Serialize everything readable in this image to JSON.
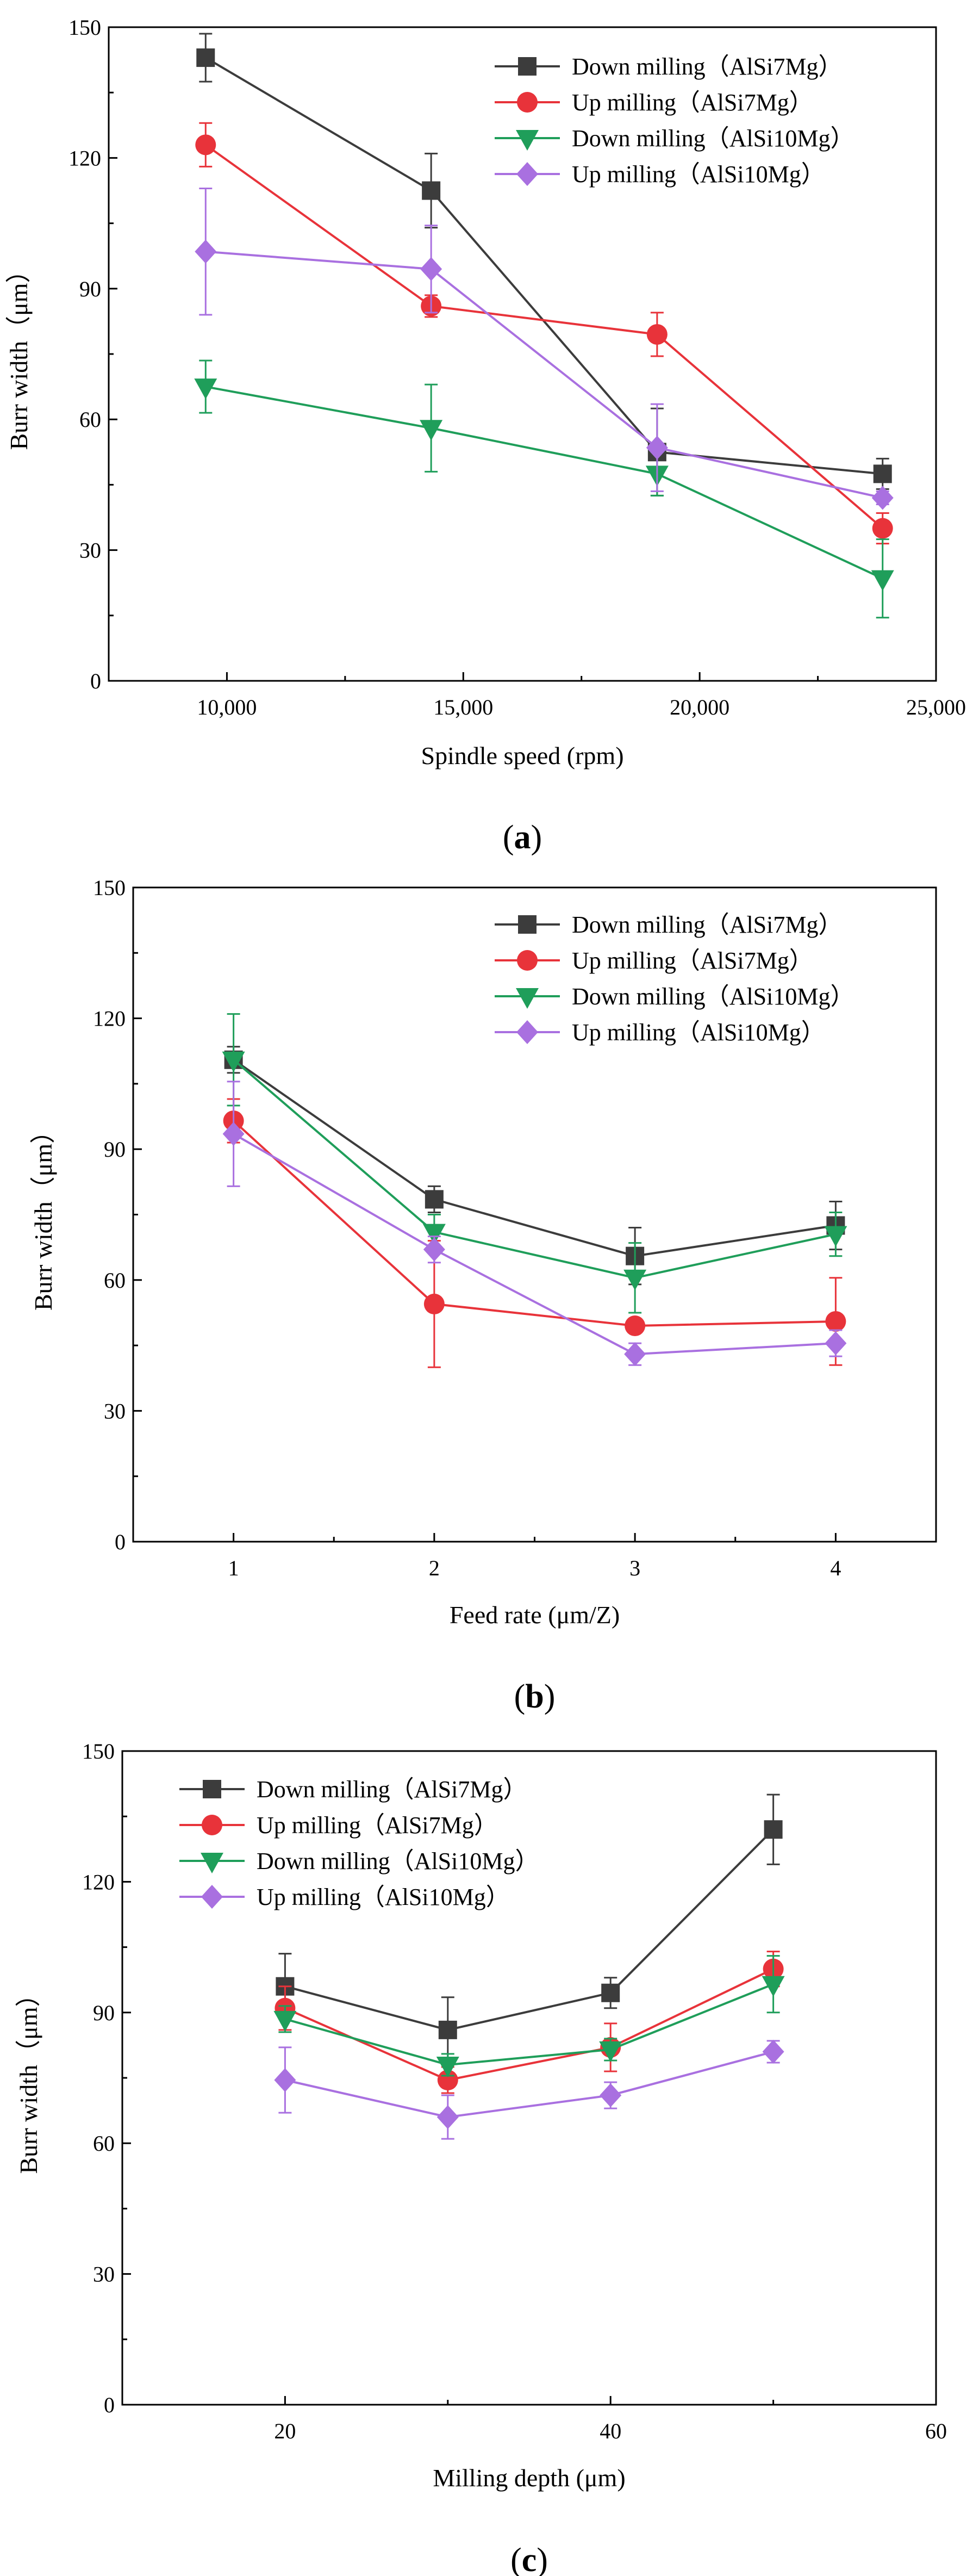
{
  "chart_data": [
    {
      "type": "line",
      "caption": "a",
      "title": "",
      "xlabel": "Spindle speed (rpm)",
      "ylabel": "Burr width（μm）",
      "xlim": [
        7500,
        25000
      ],
      "ylim": [
        0,
        150
      ],
      "xticks": [
        10000,
        15000,
        20000,
        25000
      ],
      "xtick_labels": [
        "10,000",
        "15,000",
        "20,000",
        "25,000"
      ],
      "yticks": [
        0,
        30,
        60,
        90,
        120,
        150
      ],
      "ytick_labels": [
        "0",
        "30",
        "60",
        "90",
        "120",
        "150"
      ],
      "legend_position": "top-right",
      "grid": false,
      "x": [
        9550,
        14320,
        19100,
        23870
      ],
      "series": [
        {
          "name": "Down milling（AlSi7Mg）",
          "color": "#3c3c3c",
          "marker": "square",
          "values": [
            143,
            112.5,
            52.5,
            47.5
          ],
          "errors": [
            5.5,
            8.5,
            10,
            3.5
          ]
        },
        {
          "name": "Up milling（AlSi7Mg）",
          "color": "#e8333a",
          "marker": "circle",
          "values": [
            123,
            86,
            79.5,
            35
          ],
          "errors": [
            5,
            2.5,
            5,
            3.5
          ]
        },
        {
          "name": "Down milling（AlSi10Mg）",
          "color": "#1f9e5a",
          "marker": "triangle-down",
          "values": [
            67.5,
            58,
            47.5,
            23.5
          ],
          "errors": [
            6,
            10,
            5,
            9
          ]
        },
        {
          "name": "Up milling（AlSi10Mg）",
          "color": "#a970e0",
          "marker": "diamond",
          "values": [
            98.5,
            94.5,
            53.5,
            42
          ],
          "errors": [
            14.5,
            10,
            10,
            1.5
          ]
        }
      ]
    },
    {
      "type": "line",
      "caption": "b",
      "title": "",
      "xlabel": "Feed rate (μm/Z)",
      "ylabel": "Burr width（μm）",
      "xlim": [
        0.5,
        4.5
      ],
      "ylim": [
        0,
        150
      ],
      "xticks": [
        1,
        2,
        3,
        4
      ],
      "xtick_labels": [
        "1",
        "2",
        "3",
        "4"
      ],
      "yticks": [
        0,
        30,
        60,
        90,
        120,
        150
      ],
      "ytick_labels": [
        "0",
        "30",
        "60",
        "90",
        "120",
        "150"
      ],
      "legend_position": "top-right",
      "grid": false,
      "x": [
        1,
        2,
        3,
        4
      ],
      "series": [
        {
          "name": "Down milling（AlSi7Mg）",
          "color": "#3c3c3c",
          "marker": "square",
          "values": [
            110.5,
            78.5,
            65.5,
            72.5
          ],
          "errors": [
            3,
            3,
            6.5,
            5.5
          ]
        },
        {
          "name": "Up milling（AlSi7Mg）",
          "color": "#e8333a",
          "marker": "circle",
          "values": [
            96.5,
            54.5,
            49.5,
            50.5
          ],
          "errors": [
            5,
            14.5,
            1.5,
            10
          ]
        },
        {
          "name": "Down milling（AlSi10Mg）",
          "color": "#1f9e5a",
          "marker": "triangle-down",
          "values": [
            110.5,
            71,
            60.5,
            70.5
          ],
          "errors": [
            10.5,
            4,
            8,
            5
          ]
        },
        {
          "name": "Up milling（AlSi10Mg）",
          "color": "#a970e0",
          "marker": "diamond",
          "values": [
            93.5,
            67,
            43,
            45.5
          ],
          "errors": [
            12,
            3,
            2.5,
            3
          ]
        }
      ]
    },
    {
      "type": "line",
      "caption": "c",
      "title": "",
      "xlabel": "Milling depth (μm)",
      "ylabel": "Burr width（μm）",
      "xlim": [
        10,
        60
      ],
      "ylim": [
        0,
        150
      ],
      "xticks": [
        20,
        40,
        60
      ],
      "xtick_labels": [
        "20",
        "40",
        "60"
      ],
      "yticks": [
        0,
        30,
        60,
        90,
        120,
        150
      ],
      "ytick_labels": [
        "0",
        "30",
        "60",
        "90",
        "120",
        "150"
      ],
      "legend_position": "top-left",
      "grid": false,
      "x": [
        20,
        30,
        40,
        50
      ],
      "series": [
        {
          "name": "Down milling（AlSi7Mg）",
          "color": "#3c3c3c",
          "marker": "square",
          "values": [
            96,
            86,
            94.5,
            132
          ],
          "errors": [
            7.5,
            7.5,
            3.5,
            8
          ]
        },
        {
          "name": "Up milling（AlSi7Mg）",
          "color": "#e8333a",
          "marker": "circle",
          "values": [
            91,
            74.5,
            82,
            100
          ],
          "errors": [
            5,
            3,
            5.5,
            4
          ]
        },
        {
          "name": "Down milling（AlSi10Mg）",
          "color": "#1f9e5a",
          "marker": "triangle-down",
          "values": [
            88.5,
            78,
            81.5,
            96.5
          ],
          "errors": [
            3,
            2.5,
            2.5,
            6.5
          ]
        },
        {
          "name": "Up milling（AlSi10Mg）",
          "color": "#a970e0",
          "marker": "diamond",
          "values": [
            74.5,
            66,
            71,
            81
          ],
          "errors": [
            7.5,
            5,
            3,
            2.5
          ]
        }
      ]
    }
  ]
}
